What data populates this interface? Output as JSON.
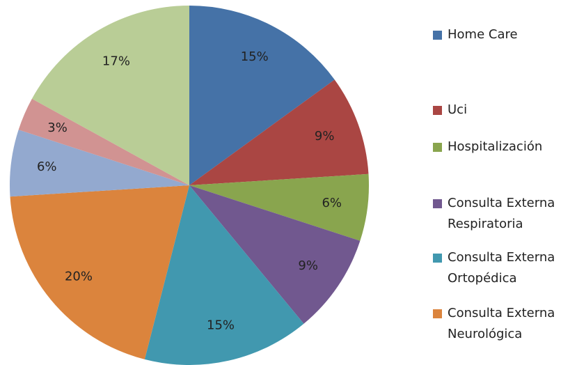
{
  "chart_data": {
    "type": "pie",
    "categories": [
      "Home Care",
      "Uci",
      "Hospitalización",
      "Consulta Externa Respiratoria",
      "Consulta Externa Ortopédica",
      "Consulta Externa Neurológica",
      null,
      null,
      null
    ],
    "values": [
      15,
      9,
      6,
      9,
      15,
      20,
      6,
      3,
      17
    ],
    "value_labels": [
      "15%",
      "9%",
      "6%",
      "9%",
      "15%",
      "20%",
      "6%",
      "3%",
      "17%"
    ],
    "colors": [
      "#4572A7",
      "#AA4643",
      "#89A54E",
      "#71588F",
      "#4198AF",
      "#DB843D",
      "#93A9CF",
      "#D19392",
      "#B9CD96"
    ]
  }
}
